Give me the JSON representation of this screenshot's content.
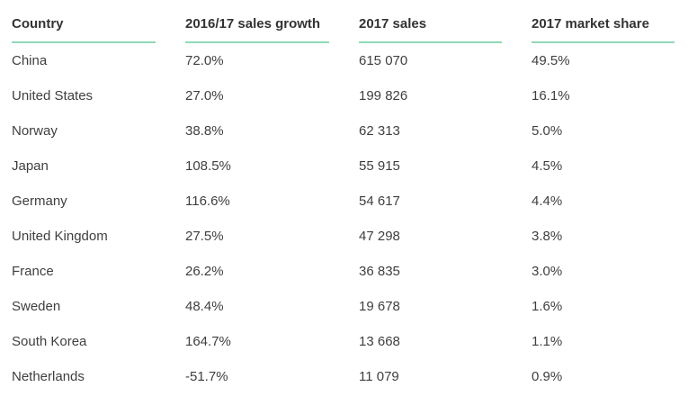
{
  "table": {
    "headers": [
      "Country",
      "2016/17 sales growth",
      "2017 sales",
      "2017 market share"
    ],
    "rows": [
      [
        "China",
        "72.0%",
        "615 070",
        "49.5%"
      ],
      [
        "United States",
        "27.0%",
        "199 826",
        "16.1%"
      ],
      [
        "Norway",
        "38.8%",
        "62 313",
        "5.0%"
      ],
      [
        "Japan",
        "108.5%",
        "55 915",
        "4.5%"
      ],
      [
        "Germany",
        "116.6%",
        "54 617",
        "4.4%"
      ],
      [
        "United Kingdom",
        "27.5%",
        "47 298",
        "3.8%"
      ],
      [
        "France",
        "26.2%",
        "36 835",
        "3.0%"
      ],
      [
        "Sweden",
        "48.4%",
        "19 678",
        "1.6%"
      ],
      [
        "South Korea",
        "164.7%",
        "13 668",
        "1.1%"
      ],
      [
        "Netherlands",
        "-51.7%",
        "11 079",
        "0.9%"
      ]
    ]
  },
  "colors": {
    "header_underline": "#8fd9b6",
    "text": "#3f3f3f",
    "header_text": "#333333"
  }
}
